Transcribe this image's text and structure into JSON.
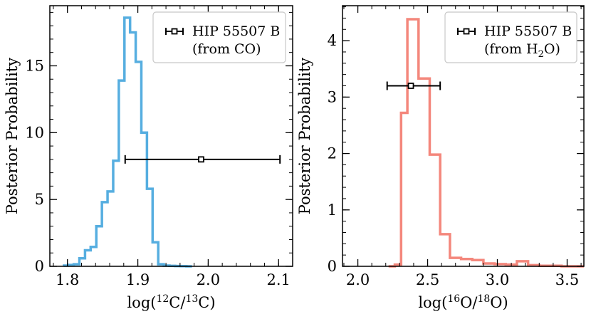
{
  "chart_data": [
    {
      "type": "histogram",
      "ylabel": "Posterior Probability",
      "xlabel": {
        "prefix": "log(",
        "sup1": "12",
        "mid": "C/",
        "sup2": "13",
        "suffix": "C)"
      },
      "xlim": [
        1.775,
        2.12
      ],
      "ylim": [
        0,
        19.5
      ],
      "xticks": [
        {
          "v": 1.8,
          "label": "1.8"
        },
        {
          "v": 1.9,
          "label": "1.9"
        },
        {
          "v": 2.0,
          "label": "2.0"
        },
        {
          "v": 2.1,
          "label": "2.1"
        }
      ],
      "yticks": [
        {
          "v": 0,
          "label": "0"
        },
        {
          "v": 5,
          "label": "5"
        },
        {
          "v": 10,
          "label": "10"
        },
        {
          "v": 15,
          "label": "15"
        }
      ],
      "xminor": 0.02,
      "yminor": 1,
      "series": [
        {
          "color": "#56aee0",
          "bin_edges": [
            1.795,
            1.801,
            1.809,
            1.817,
            1.825,
            1.833,
            1.841,
            1.849,
            1.857,
            1.865,
            1.873,
            1.881,
            1.889,
            1.897,
            1.905,
            1.913,
            1.921,
            1.929,
            1.937,
            1.945,
            1.953,
            1.961,
            1.969,
            1.977
          ],
          "counts": [
            0.05,
            0.1,
            0.15,
            0.6,
            1.2,
            1.45,
            3.0,
            4.8,
            5.6,
            7.9,
            13.9,
            18.6,
            17.5,
            15.3,
            10.0,
            5.8,
            1.8,
            0.15,
            0.05,
            0.03,
            0.02,
            0.01,
            0.0
          ]
        }
      ],
      "measurement": {
        "x": 1.99,
        "xerr_low": 0.108,
        "xerr_high": 0.112,
        "y": 8.0
      },
      "legend": {
        "line1": "HIP 55507 B",
        "line2_prefix": "(from CO)",
        "line2_sub": "",
        "line2_suffix": "",
        "position": "upper-right"
      }
    },
    {
      "type": "histogram",
      "ylabel": "Posterior Probability",
      "xlabel": {
        "prefix": "log(",
        "sup1": "16",
        "mid": "O/",
        "sup2": "18",
        "suffix": "O)"
      },
      "xlim": [
        1.89,
        3.62
      ],
      "ylim": [
        0,
        4.62
      ],
      "xticks": [
        {
          "v": 2.0,
          "label": "2.0"
        },
        {
          "v": 2.5,
          "label": "2.5"
        },
        {
          "v": 3.0,
          "label": "3.0"
        },
        {
          "v": 3.5,
          "label": "3.5"
        }
      ],
      "yticks": [
        {
          "v": 0,
          "label": "0"
        },
        {
          "v": 1,
          "label": "1"
        },
        {
          "v": 2,
          "label": "2"
        },
        {
          "v": 3,
          "label": "3"
        },
        {
          "v": 4,
          "label": "4"
        }
      ],
      "xminor": 0.1,
      "yminor": 0.2,
      "series": [
        {
          "color": "#f4877c",
          "bin_edges": [
            2.22,
            2.265,
            2.31,
            2.355,
            2.435,
            2.515,
            2.59,
            2.66,
            2.74,
            2.82,
            2.9,
            2.98,
            3.06,
            3.14,
            3.22,
            3.3,
            3.38,
            3.46,
            3.54,
            3.62
          ],
          "counts": [
            0.0,
            0.03,
            2.72,
            4.38,
            3.33,
            1.98,
            0.57,
            0.15,
            0.13,
            0.11,
            0.05,
            0.04,
            0.03,
            0.09,
            0.02,
            0.01,
            0.01,
            0.0,
            0.0
          ]
        }
      ],
      "measurement": {
        "x": 2.38,
        "xerr_low": 0.17,
        "xerr_high": 0.21,
        "y": 3.2
      },
      "legend": {
        "line1": "HIP 55507 B",
        "line2_prefix": "(from H",
        "line2_sub": "2",
        "line2_suffix": "O)",
        "position": "upper-right"
      }
    }
  ]
}
